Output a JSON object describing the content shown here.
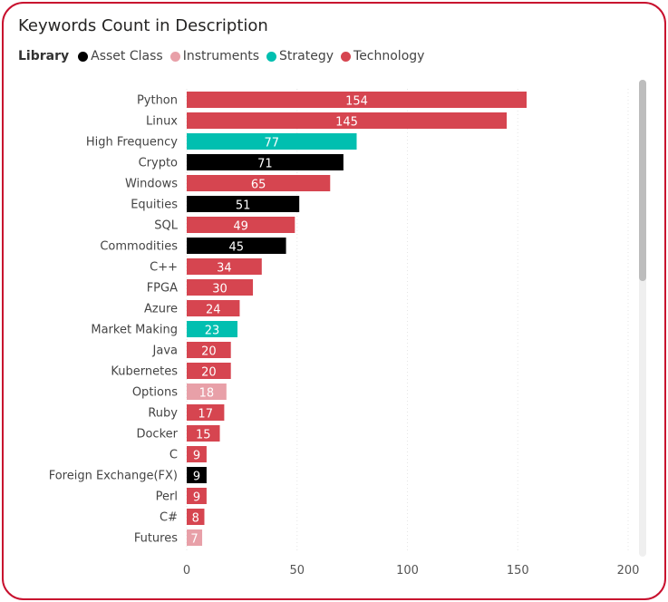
{
  "title": "Keywords Count in Description",
  "legend": {
    "title": "Library",
    "items": [
      {
        "label": "Asset Class",
        "color": "#000000"
      },
      {
        "label": "Instruments",
        "color": "#e8a0a8"
      },
      {
        "label": "Strategy",
        "color": "#01bfb0"
      },
      {
        "label": "Technology",
        "color": "#d64550"
      }
    ]
  },
  "chart_data": {
    "type": "bar",
    "orientation": "horizontal",
    "title": "Keywords Count in Description",
    "xlabel": "",
    "ylabel": "",
    "xlim": [
      0,
      200
    ],
    "x_ticks": [
      0,
      50,
      100,
      150,
      200
    ],
    "grid": true,
    "legend_position": "top-left",
    "categories": [
      "Python",
      "Linux",
      "High Frequency",
      "Crypto",
      "Windows",
      "Equities",
      "SQL",
      "Commodities",
      "C++",
      "FPGA",
      "Azure",
      "Market Making",
      "Java",
      "Kubernetes",
      "Options",
      "Ruby",
      "Docker",
      "C",
      "Foreign Exchange(FX)",
      "Perl",
      "C#",
      "Futures"
    ],
    "values": [
      154,
      145,
      77,
      71,
      65,
      51,
      49,
      45,
      34,
      30,
      24,
      23,
      20,
      20,
      18,
      17,
      15,
      9,
      9,
      9,
      8,
      7
    ],
    "groups": [
      "Technology",
      "Technology",
      "Strategy",
      "Asset Class",
      "Technology",
      "Asset Class",
      "Technology",
      "Asset Class",
      "Technology",
      "Technology",
      "Technology",
      "Strategy",
      "Technology",
      "Technology",
      "Instruments",
      "Technology",
      "Technology",
      "Technology",
      "Asset Class",
      "Technology",
      "Technology",
      "Instruments"
    ]
  }
}
